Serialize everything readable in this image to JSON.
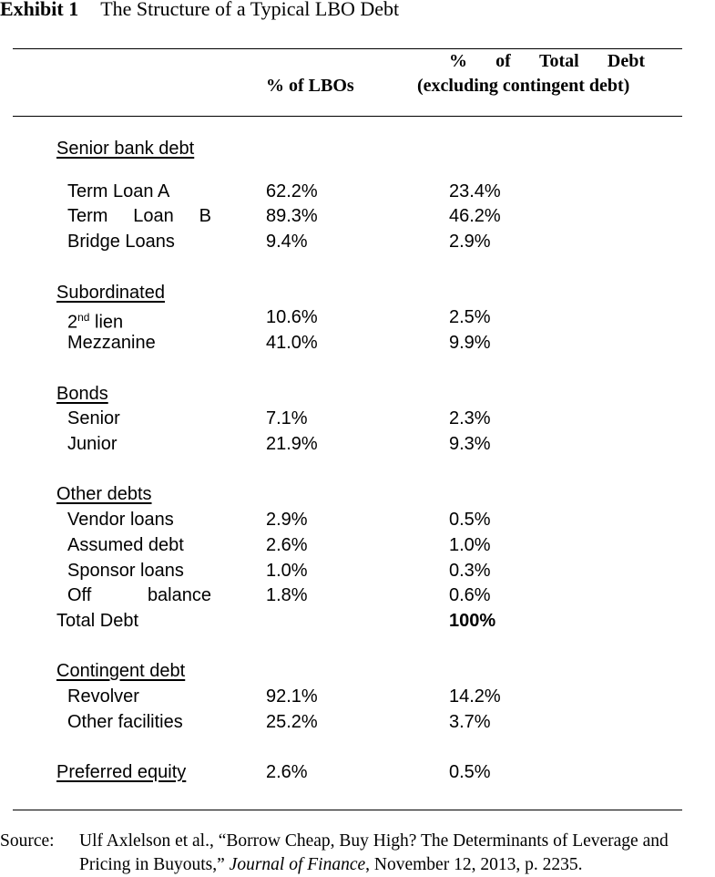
{
  "exhibit": {
    "label": "Exhibit 1",
    "title": "The Structure of a Typical LBO Debt"
  },
  "table": {
    "headers": {
      "col_lbos": "% of LBOs",
      "col_debt_line1": [
        "%",
        "of",
        "Total",
        "Debt"
      ],
      "col_debt_line2": "(excluding contingent debt)"
    },
    "rows": [
      {
        "kind": "section",
        "label": "Senior bank debt"
      },
      {
        "kind": "item",
        "label": "Term Loan A",
        "pct_lbos": "62.2%",
        "pct_debt": "23.4%"
      },
      {
        "kind": "item",
        "label_words": [
          "Term",
          "Loan",
          "B"
        ],
        "pct_lbos": "89.3%",
        "pct_debt": "46.2%"
      },
      {
        "kind": "item",
        "label": "Bridge Loans",
        "pct_lbos": "9.4%",
        "pct_debt": "2.9%"
      },
      {
        "kind": "section",
        "label": "Subordinated"
      },
      {
        "kind": "item",
        "label_base": "2",
        "label_sup": "nd",
        "label_rest": " lien",
        "pct_lbos": "10.6%",
        "pct_debt": "2.5%"
      },
      {
        "kind": "item",
        "label": "Mezzanine",
        "pct_lbos": "41.0%",
        "pct_debt": "9.9%"
      },
      {
        "kind": "section",
        "label": "Bonds"
      },
      {
        "kind": "item",
        "label": "Senior",
        "pct_lbos": "7.1%",
        "pct_debt": "2.3%"
      },
      {
        "kind": "item",
        "label": "Junior",
        "pct_lbos": "21.9%",
        "pct_debt": "9.3%"
      },
      {
        "kind": "section",
        "label": "Other debts"
      },
      {
        "kind": "item",
        "label": "Vendor loans",
        "pct_lbos": "2.9%",
        "pct_debt": "0.5%"
      },
      {
        "kind": "item",
        "label": "Assumed debt",
        "pct_lbos": "2.6%",
        "pct_debt": "1.0%"
      },
      {
        "kind": "item",
        "label": "Sponsor loans",
        "pct_lbos": "1.0%",
        "pct_debt": "0.3%"
      },
      {
        "kind": "item",
        "label_words": [
          "Off",
          "balance"
        ],
        "pct_lbos": "1.8%",
        "pct_debt": "0.6%"
      },
      {
        "kind": "total",
        "label": "Total Debt",
        "pct_lbos": "",
        "pct_debt": "100%"
      },
      {
        "kind": "section",
        "label": "Contingent debt"
      },
      {
        "kind": "item",
        "label": "Revolver",
        "pct_lbos": "92.1%",
        "pct_debt": "14.2%"
      },
      {
        "kind": "item",
        "label": "Other facilities",
        "pct_lbos": "25.2%",
        "pct_debt": "3.7%"
      },
      {
        "kind": "section_value",
        "label": "Preferred equity",
        "pct_lbos": "2.6%",
        "pct_debt": "0.5%"
      }
    ]
  },
  "source": {
    "label": "Source:",
    "text_before": "Ulf Axlelson et al., “Borrow Cheap, Buy High? The Determinants of Leverage and Pricing in Buyouts,” ",
    "journal": "Journal of Finance",
    "text_after": ", November 12, 2013, p. 2235."
  }
}
